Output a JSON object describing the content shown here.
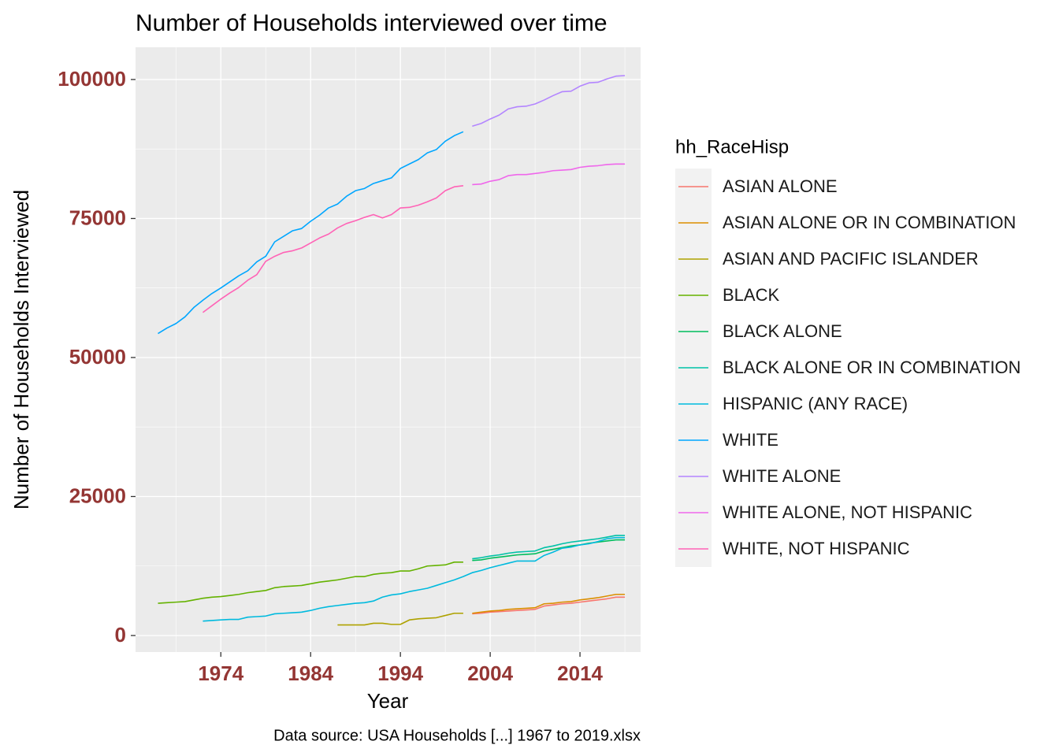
{
  "chart_data": {
    "type": "line",
    "title": "Number of Households interviewed over time",
    "x_label": "Year",
    "y_label": "Number of Households Interviewed",
    "caption": "Data source: USA Households [...] 1967 to 2019.xlsx",
    "legend_title": "hh_RaceHisp",
    "legend_position": "right",
    "grid": true,
    "xlim": [
      1964.5,
      2020.75
    ],
    "ylim": [
      -2975,
      105800
    ],
    "xticks": [
      1974,
      1984,
      1994,
      2004,
      2014
    ],
    "yticks": [
      0,
      25000,
      50000,
      75000,
      100000
    ],
    "series": [
      {
        "name": "ASIAN ALONE",
        "color": "#F8766D",
        "x": [
          2002,
          2003,
          2004,
          2005,
          2006,
          2007,
          2008,
          2009,
          2010,
          2011,
          2012,
          2013,
          2014,
          2015,
          2016,
          2017,
          2018,
          2019
        ],
        "values": [
          3900,
          4000,
          4200,
          4300,
          4400,
          4500,
          4600,
          4700,
          5300,
          5500,
          5700,
          5800,
          6000,
          6200,
          6400,
          6600,
          6900,
          6900
        ]
      },
      {
        "name": "ASIAN ALONE OR IN COMBINATION",
        "color": "#DB8E00",
        "x": [
          2002,
          2003,
          2004,
          2005,
          2006,
          2007,
          2008,
          2009,
          2010,
          2011,
          2012,
          2013,
          2014,
          2015,
          2016,
          2017,
          2018,
          2019
        ],
        "values": [
          4000,
          4200,
          4400,
          4500,
          4700,
          4800,
          4900,
          5000,
          5700,
          5800,
          6000,
          6100,
          6400,
          6600,
          6800,
          7100,
          7400,
          7400
        ]
      },
      {
        "name": "ASIAN AND PACIFIC ISLANDER",
        "color": "#AEA200",
        "x": [
          1987,
          1988,
          1989,
          1990,
          1991,
          1992,
          1993,
          1994,
          1995,
          1996,
          1997,
          1998,
          1999,
          2000,
          2001
        ],
        "values": [
          1900,
          1900,
          1900,
          1900,
          2200,
          2200,
          2000,
          2000,
          2800,
          3000,
          3100,
          3200,
          3600,
          4000,
          4000
        ]
      },
      {
        "name": "BLACK",
        "color": "#64B200",
        "x": [
          1967,
          1968,
          1969,
          1970,
          1971,
          1972,
          1973,
          1974,
          1975,
          1976,
          1977,
          1978,
          1979,
          1980,
          1981,
          1982,
          1983,
          1984,
          1985,
          1986,
          1987,
          1988,
          1989,
          1990,
          1991,
          1992,
          1993,
          1994,
          1995,
          1996,
          1997,
          1998,
          1999,
          2000,
          2001
        ],
        "values": [
          5800,
          5900,
          6000,
          6100,
          6400,
          6700,
          6900,
          7000,
          7200,
          7400,
          7700,
          7900,
          8100,
          8600,
          8800,
          8900,
          9000,
          9300,
          9600,
          9800,
          10000,
          10300,
          10600,
          10600,
          11000,
          11200,
          11300,
          11600,
          11600,
          12000,
          12500,
          12600,
          12700,
          13200,
          13200
        ]
      },
      {
        "name": "BLACK ALONE",
        "color": "#00BD5C",
        "x": [
          2002,
          2003,
          2004,
          2005,
          2006,
          2007,
          2008,
          2009,
          2010,
          2011,
          2012,
          2013,
          2014,
          2015,
          2016,
          2017,
          2018,
          2019
        ],
        "values": [
          13500,
          13600,
          13900,
          14100,
          14300,
          14500,
          14600,
          14700,
          15200,
          15500,
          15800,
          16100,
          16300,
          16600,
          16800,
          17000,
          17200,
          17200
        ]
      },
      {
        "name": "BLACK ALONE OR IN COMBINATION",
        "color": "#00C1A7",
        "x": [
          2002,
          2003,
          2004,
          2005,
          2006,
          2007,
          2008,
          2009,
          2010,
          2011,
          2012,
          2013,
          2014,
          2015,
          2016,
          2017,
          2018,
          2019
        ],
        "values": [
          13800,
          14000,
          14300,
          14500,
          14800,
          15000,
          15100,
          15200,
          15800,
          16100,
          16500,
          16800,
          17000,
          17200,
          17400,
          17700,
          18000,
          18000
        ]
      },
      {
        "name": "HISPANIC (ANY RACE)",
        "color": "#00BADE",
        "x": [
          1972,
          1973,
          1974,
          1975,
          1976,
          1977,
          1978,
          1979,
          1980,
          1981,
          1982,
          1983,
          1984,
          1985,
          1986,
          1987,
          1988,
          1989,
          1990,
          1991,
          1992,
          1993,
          1994,
          1995,
          1996,
          1997,
          1998,
          1999,
          2000,
          2001,
          2002,
          2003,
          2004,
          2005,
          2006,
          2007,
          2008,
          2009,
          2010,
          2011,
          2012,
          2013,
          2014,
          2015,
          2016,
          2017,
          2018,
          2019
        ],
        "values": [
          2600,
          2700,
          2800,
          2900,
          2900,
          3300,
          3400,
          3500,
          3900,
          4000,
          4100,
          4200,
          4500,
          4900,
          5200,
          5400,
          5600,
          5800,
          5900,
          6200,
          6900,
          7300,
          7500,
          7900,
          8200,
          8500,
          9000,
          9500,
          10000,
          10600,
          11300,
          11700,
          12200,
          12600,
          13000,
          13400,
          13400,
          13400,
          14400,
          15000,
          15700,
          15900,
          16300,
          16500,
          16900,
          17400,
          17600,
          17600
        ]
      },
      {
        "name": "WHITE",
        "color": "#00A6FF",
        "x": [
          1967,
          1968,
          1969,
          1970,
          1971,
          1972,
          1973,
          1974,
          1975,
          1976,
          1977,
          1978,
          1979,
          1980,
          1981,
          1982,
          1983,
          1984,
          1985,
          1986,
          1987,
          1988,
          1989,
          1990,
          1991,
          1992,
          1993,
          1994,
          1995,
          1996,
          1997,
          1998,
          1999,
          2000,
          2001
        ],
        "values": [
          54300,
          55300,
          56100,
          57300,
          59000,
          60300,
          61500,
          62500,
          63600,
          64700,
          65600,
          67200,
          68200,
          70800,
          71800,
          72800,
          73200,
          74500,
          75600,
          76900,
          77600,
          79000,
          80000,
          80400,
          81300,
          81800,
          82300,
          84000,
          84800,
          85600,
          86800,
          87400,
          88900,
          89900,
          90600
        ]
      },
      {
        "name": "WHITE ALONE",
        "color": "#B385FF",
        "x": [
          2002,
          2003,
          2004,
          2005,
          2006,
          2007,
          2008,
          2009,
          2010,
          2011,
          2012,
          2013,
          2014,
          2015,
          2016,
          2017,
          2018,
          2019
        ],
        "values": [
          91600,
          92100,
          92900,
          93600,
          94700,
          95100,
          95200,
          95600,
          96300,
          97100,
          97800,
          97900,
          98800,
          99400,
          99500,
          100100,
          100600,
          100700
        ]
      },
      {
        "name": "WHITE ALONE, NOT HISPANIC",
        "color": "#EF67EB",
        "x": [
          2002,
          2003,
          2004,
          2005,
          2006,
          2007,
          2008,
          2009,
          2010,
          2011,
          2012,
          2013,
          2014,
          2015,
          2016,
          2017,
          2018,
          2019
        ],
        "values": [
          81100,
          81200,
          81700,
          82000,
          82700,
          82900,
          82900,
          83100,
          83300,
          83600,
          83700,
          83800,
          84200,
          84400,
          84500,
          84700,
          84800,
          84800
        ]
      },
      {
        "name": "WHITE, NOT HISPANIC",
        "color": "#FF63B6",
        "x": [
          1972,
          1973,
          1974,
          1975,
          1976,
          1977,
          1978,
          1979,
          1980,
          1981,
          1982,
          1983,
          1984,
          1985,
          1986,
          1987,
          1988,
          1989,
          1990,
          1991,
          1992,
          1993,
          1994,
          1995,
          1996,
          1997,
          1998,
          1999,
          2000,
          2001
        ],
        "values": [
          58100,
          59300,
          60500,
          61600,
          62600,
          63900,
          64900,
          67300,
          68200,
          68900,
          69200,
          69700,
          70600,
          71500,
          72200,
          73300,
          74100,
          74600,
          75200,
          75700,
          75100,
          75700,
          76900,
          77000,
          77400,
          78000,
          78700,
          80000,
          80700,
          80900
        ]
      }
    ]
  }
}
